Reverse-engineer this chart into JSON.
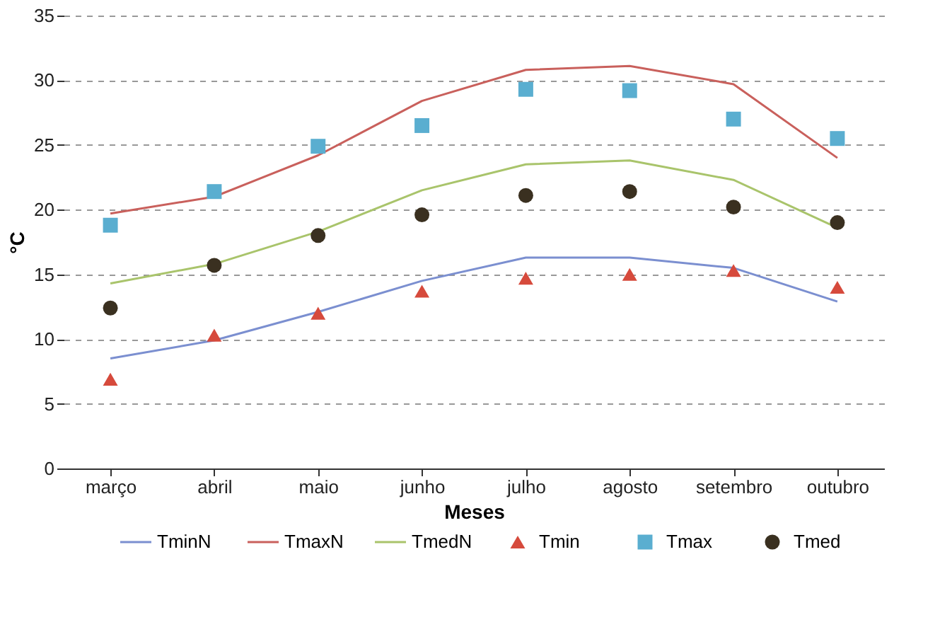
{
  "chart_data": {
    "type": "line",
    "xlabel": "Meses",
    "ylabel": "°C",
    "categories": [
      "março",
      "abril",
      "maio",
      "junho",
      "julho",
      "agosto",
      "setembro",
      "outubro"
    ],
    "ylim": [
      0,
      35
    ],
    "yticks": [
      0,
      5,
      10,
      15,
      20,
      25,
      30,
      35
    ],
    "grid": "y",
    "legend": "bottom",
    "series": [
      {
        "name": "TminN",
        "line_style": "solid",
        "color": "#7b8fd0",
        "values": [
          8.5,
          9.9,
          12.1,
          14.5,
          16.3,
          16.3,
          15.5,
          12.9
        ]
      },
      {
        "name": "TmaxN",
        "line_style": "solid",
        "color": "#c9605c",
        "values": [
          19.7,
          21.0,
          24.2,
          28.4,
          30.8,
          31.1,
          29.7,
          24.0
        ]
      },
      {
        "name": "TmedN",
        "line_style": "solid",
        "color": "#a9c46b",
        "values": [
          14.3,
          15.8,
          18.3,
          21.5,
          23.5,
          23.8,
          22.3,
          18.6
        ]
      },
      {
        "name": "Tmin",
        "type": "scatter",
        "marker": "triangle",
        "color": "#d64a3c",
        "values": [
          6.9,
          10.3,
          12.0,
          13.7,
          14.7,
          15.0,
          15.3,
          14.0
        ]
      },
      {
        "name": "Tmax",
        "type": "scatter",
        "marker": "square",
        "color": "#5aaed0",
        "values": [
          18.8,
          21.4,
          24.9,
          26.5,
          29.3,
          29.2,
          27.0,
          25.5
        ]
      },
      {
        "name": "Tmed",
        "type": "scatter",
        "marker": "circle",
        "color": "#3a3020",
        "values": [
          12.4,
          15.7,
          18.0,
          19.6,
          21.1,
          21.4,
          20.2,
          19.0
        ]
      }
    ]
  }
}
